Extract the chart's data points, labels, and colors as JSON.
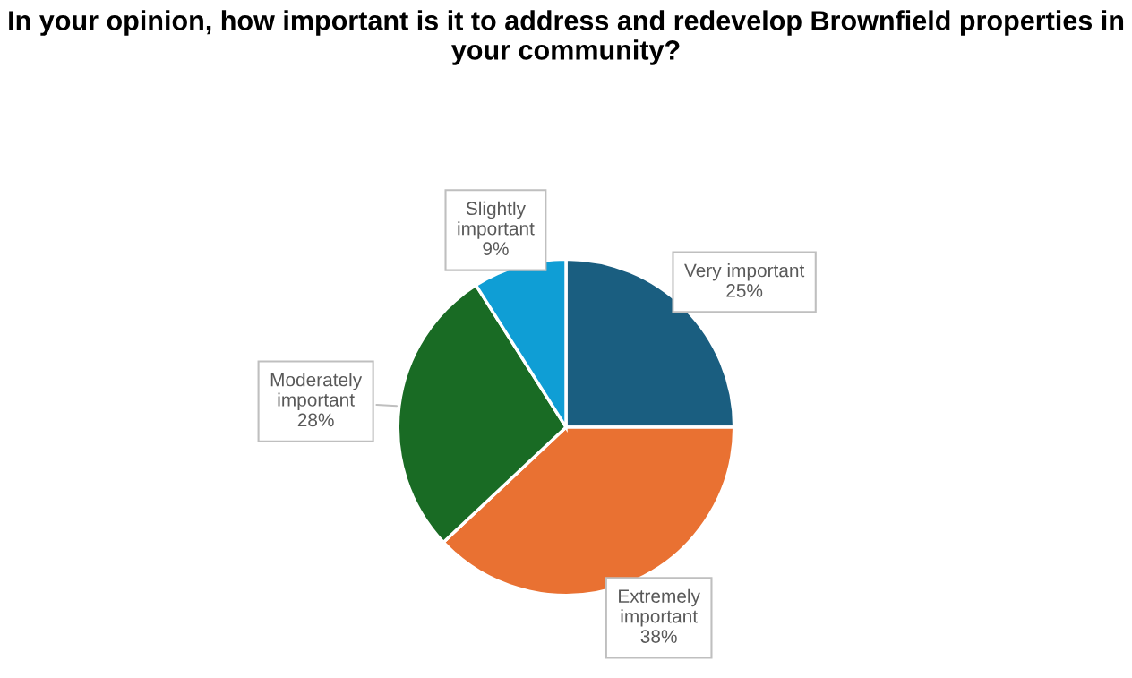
{
  "chart_data": {
    "type": "pie",
    "title": "In your opinion, how important is it to address and redevelop Brownfield properties in your community?",
    "categories": [
      "Very important",
      "Extremely important",
      "Moderately important",
      "Slightly important"
    ],
    "values": [
      25,
      38,
      28,
      9
    ],
    "value_labels": [
      "25%",
      "38%",
      "28%",
      "9%"
    ],
    "colors": [
      "#1a5e80",
      "#e97132",
      "#196b24",
      "#0f9ed5"
    ],
    "data_labels": true,
    "legend": false
  }
}
